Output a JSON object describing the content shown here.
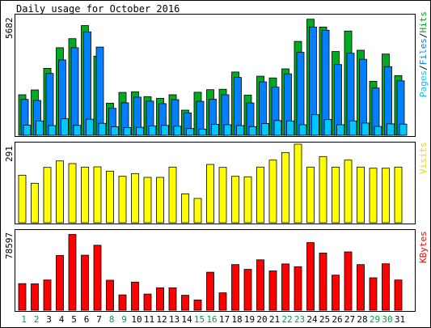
{
  "title": "Daily usage for October 2016",
  "colors": {
    "hits": "#00aa22",
    "files": "#0080ff",
    "pages": "#00c8ff",
    "visits": "#ffff00",
    "kbytes": "#ff0000",
    "weekday_label": "#000000",
    "weekend_label": "#00a040",
    "frame": "#000000",
    "background": "#ffffff"
  },
  "chart_data": [
    {
      "type": "bar",
      "name": "hits-files-pages-panel",
      "ymax_label": "5682",
      "ylim": [
        0,
        5682
      ],
      "categories": [
        "1",
        "2",
        "3",
        "4",
        "5",
        "6",
        "7",
        "8",
        "9",
        "10",
        "11",
        "12",
        "13",
        "14",
        "15",
        "16",
        "17",
        "18",
        "19",
        "20",
        "21",
        "22",
        "23",
        "24",
        "25",
        "26",
        "27",
        "28",
        "29",
        "30",
        "31"
      ],
      "legend": [
        "Pages",
        "/",
        "Files",
        "/",
        "Hits"
      ],
      "series": [
        {
          "name": "Hits",
          "values": [
            1920,
            2150,
            3170,
            4150,
            4580,
            5200,
            3750,
            1520,
            2030,
            2060,
            1830,
            1750,
            1920,
            1190,
            2040,
            2160,
            2180,
            3000,
            1900,
            2800,
            2720,
            3150,
            4450,
            5500,
            5130,
            3970,
            4940,
            4030,
            2560,
            3850,
            2830
          ]
        },
        {
          "name": "Files",
          "values": [
            1700,
            1650,
            2930,
            3570,
            4150,
            4900,
            4180,
            1280,
            1540,
            1810,
            1620,
            1500,
            1690,
            1060,
            1610,
            1710,
            1920,
            2740,
            1530,
            2530,
            2280,
            2910,
            3930,
            5130,
            4980,
            3350,
            3890,
            3600,
            2240,
            3250,
            2580
          ]
        },
        {
          "name": "Pages",
          "values": [
            480,
            680,
            460,
            780,
            470,
            760,
            570,
            400,
            370,
            380,
            440,
            470,
            430,
            320,
            290,
            520,
            500,
            460,
            410,
            560,
            700,
            680,
            500,
            970,
            750,
            500,
            680,
            580,
            420,
            540,
            530
          ]
        }
      ]
    },
    {
      "type": "bar",
      "name": "visits-panel",
      "ymax_label": "291",
      "ylim": [
        0,
        291
      ],
      "categories": [
        "1",
        "2",
        "3",
        "4",
        "5",
        "6",
        "7",
        "8",
        "9",
        "10",
        "11",
        "12",
        "13",
        "14",
        "15",
        "16",
        "17",
        "18",
        "19",
        "20",
        "21",
        "22",
        "23",
        "24",
        "25",
        "26",
        "27",
        "28",
        "29",
        "30",
        "31"
      ],
      "legend": [
        "Visits"
      ],
      "series": [
        {
          "name": "Visits",
          "values": [
            176,
            146,
            205,
            229,
            219,
            206,
            207,
            191,
            172,
            182,
            168,
            168,
            206,
            107,
            90,
            216,
            205,
            172,
            170,
            206,
            232,
            260,
            291,
            206,
            245,
            206,
            232,
            206,
            202,
            202,
            206
          ]
        }
      ]
    },
    {
      "type": "bar",
      "name": "kbytes-panel",
      "ymax_label": "78597",
      "ylim": [
        0,
        78597
      ],
      "categories": [
        "1",
        "2",
        "3",
        "4",
        "5",
        "6",
        "7",
        "8",
        "9",
        "10",
        "11",
        "12",
        "13",
        "14",
        "15",
        "16",
        "17",
        "18",
        "19",
        "20",
        "21",
        "22",
        "23",
        "24",
        "25",
        "26",
        "27",
        "28",
        "29",
        "30",
        "31"
      ],
      "legend": [
        "KBytes"
      ],
      "series": [
        {
          "name": "KBytes",
          "values": [
            26600,
            26300,
            30200,
            54700,
            75800,
            55000,
            65000,
            30000,
            15300,
            28100,
            16100,
            22400,
            22400,
            14900,
            10200,
            38000,
            17300,
            45600,
            40800,
            50400,
            39300,
            46300,
            43500,
            67600,
            57100,
            35100,
            58300,
            45600,
            32400,
            46400,
            30200
          ]
        }
      ]
    }
  ],
  "day_labels": [
    "1",
    "2",
    "3",
    "4",
    "5",
    "6",
    "7",
    "8",
    "9",
    "10",
    "11",
    "12",
    "13",
    "14",
    "15",
    "16",
    "17",
    "18",
    "19",
    "20",
    "21",
    "22",
    "23",
    "24",
    "25",
    "26",
    "27",
    "28",
    "29",
    "30",
    "31"
  ],
  "weekend_days": [
    1,
    2,
    8,
    9,
    15,
    16,
    22,
    23,
    29,
    30
  ]
}
